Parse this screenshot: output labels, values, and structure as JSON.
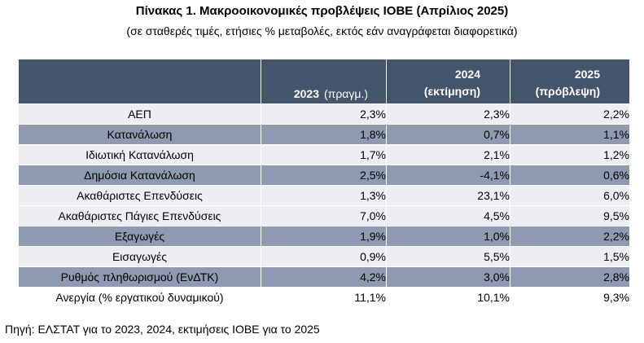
{
  "title": "Πίνακας 1. Μακροοικονομικές προβλέψεις ΙΟΒΕ (Απρίλιος 2025)",
  "subtitle": "(σε σταθερές τιμές, ετήσιες % μεταβολές, εκτός εάν αναγράφεται διαφορετικά)",
  "header": {
    "col1_year": "2023",
    "col1_note": "(πραγμ.)",
    "col2_year": "2024",
    "col2_note": "(εκτίμηση)",
    "col3_year": "2025",
    "col3_note": "(πρόβλεψη)"
  },
  "rows": [
    {
      "label": "ΑΕΠ",
      "v2023": "2,3%",
      "v2024": "2,3%",
      "v2025": "2,2%"
    },
    {
      "label": "Κατανάλωση",
      "v2023": "1,8%",
      "v2024": "0,7%",
      "v2025": "1,1%"
    },
    {
      "label": "Ιδιωτική Κατανάλωση",
      "v2023": "1,7%",
      "v2024": "2,1%",
      "v2025": "1,2%"
    },
    {
      "label": "Δημόσια Κατανάλωση",
      "v2023": "2,5%",
      "v2024": "-4,1%",
      "v2025": "0,6%"
    },
    {
      "label": "Ακαθάριστες Επενδύσεις",
      "v2023": "1,3%",
      "v2024": "23,1%",
      "v2025": "6,0%"
    },
    {
      "label": "Ακαθάριστες Πάγιες Επενδύσεις",
      "v2023": "7,0%",
      "v2024": "4,5%",
      "v2025": "9,5%"
    },
    {
      "label": "Εξαγωγές",
      "v2023": "1,9%",
      "v2024": "1,0%",
      "v2025": "2,2%"
    },
    {
      "label": "Εισαγωγές",
      "v2023": "0,9%",
      "v2024": "5,5%",
      "v2025": "1,5%"
    },
    {
      "label": "Ρυθμός πληθωρισμού (ΕνΔΤΚ)",
      "v2023": "4,2%",
      "v2024": "3,0%",
      "v2025": "2,8%"
    },
    {
      "label": "Ανεργία (% εργατικού δυναμικού)",
      "v2023": "11,1%",
      "v2024": "10,1%",
      "v2025": "9,3%"
    }
  ],
  "source": "Πηγή: ΕΛΣΤΑΤ για το 2023, 2024, εκτιμήσεις ΙΟΒΕ για το 2025",
  "colors": {
    "header": "#44546a",
    "row_light": "#edeef2",
    "row_dark": "#8e9ab0"
  }
}
